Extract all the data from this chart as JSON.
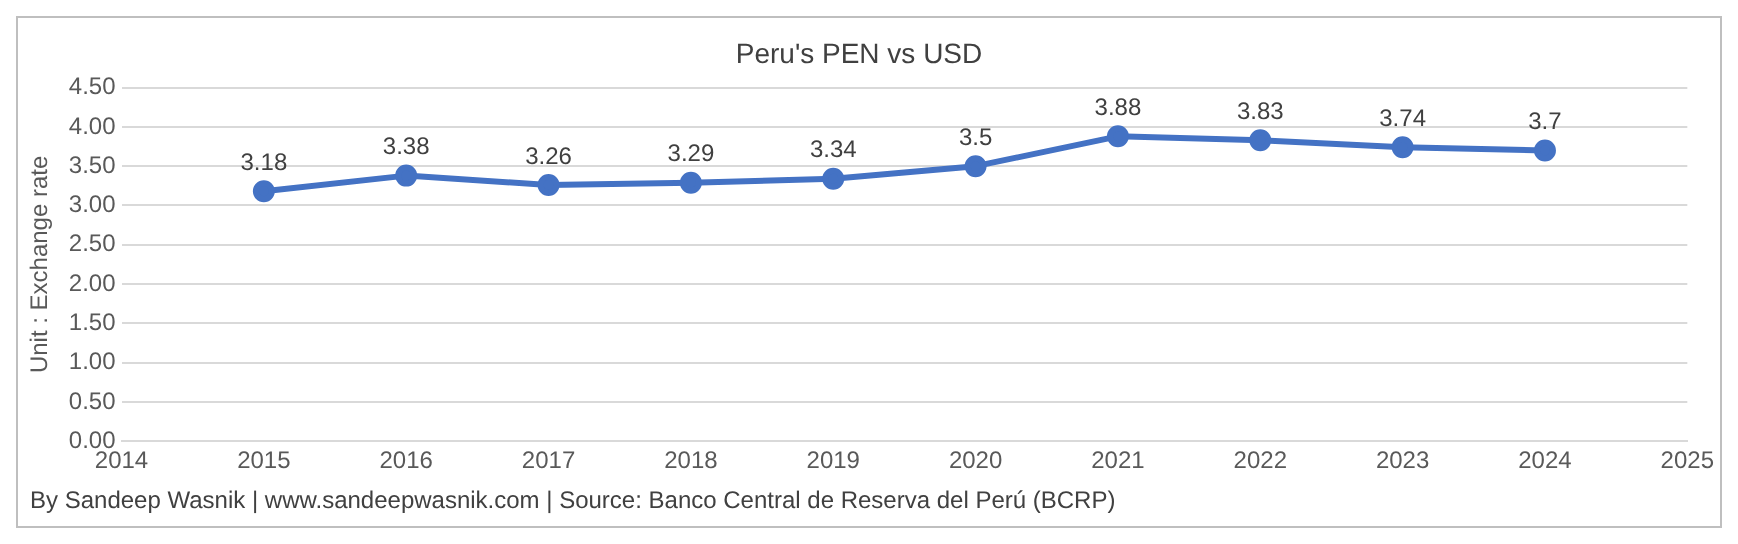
{
  "chart_data": {
    "type": "line",
    "title": "Peru's PEN vs USD",
    "ylabel": "Unit : Exchange rate",
    "x": [
      2015,
      2016,
      2017,
      2018,
      2019,
      2020,
      2021,
      2022,
      2023,
      2024
    ],
    "series": [
      {
        "color": "#4472c4",
        "values": [
          3.18,
          3.38,
          3.26,
          3.29,
          3.34,
          3.5,
          3.88,
          3.83,
          3.74,
          3.7
        ]
      }
    ],
    "xlim": [
      2014,
      2025
    ],
    "xticks": [
      2014,
      2015,
      2016,
      2017,
      2018,
      2019,
      2020,
      2021,
      2022,
      2023,
      2024,
      2025
    ],
    "ylim": [
      0,
      4.5
    ],
    "yticks": [
      {
        "value": 0,
        "label": "0.00"
      },
      {
        "value": 0.5,
        "label": "0.50"
      },
      {
        "value": 1,
        "label": "1.00"
      },
      {
        "value": 1.5,
        "label": "1.50"
      },
      {
        "value": 2,
        "label": "2.00"
      },
      {
        "value": 2.5,
        "label": "2.50"
      },
      {
        "value": 3,
        "label": "3.00"
      },
      {
        "value": 3.5,
        "label": "3.50"
      },
      {
        "value": 4,
        "label": "4.00"
      },
      {
        "value": 4.5,
        "label": "4.50"
      }
    ],
    "grid": "y",
    "marker": "circle",
    "line_style": "solid",
    "data_labels": true,
    "legend": false,
    "annotations": [
      "By Sandeep Wasnik | www.sandeepwasnik.com | Source: Banco Central de Reserva del Perú (BCRP)"
    ]
  }
}
